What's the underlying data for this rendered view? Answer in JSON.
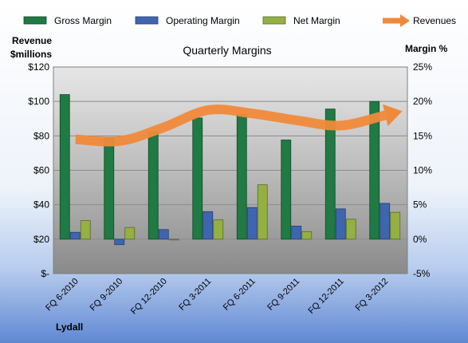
{
  "chart_data": {
    "type": "bar",
    "title": "Quarterly Margins",
    "footer": "Lydall",
    "left_axis_label": [
      "Revenue",
      "$millions"
    ],
    "right_axis_label": "Margin %",
    "categories": [
      "FQ 6-2010",
      "FQ 9-2010",
      "FQ 12-2010",
      "FQ 3-2011",
      "FQ 6-2011",
      "FQ 9-2011",
      "FQ 12-2011",
      "FQ 3-2012"
    ],
    "left_ticks": [
      "$-",
      "$20",
      "$40",
      "$60",
      "$80",
      "$100",
      "$120"
    ],
    "right_ticks": [
      "-5%",
      "0%",
      "5%",
      "10%",
      "15%",
      "20%",
      "25%"
    ],
    "left_ylim": [
      0,
      120
    ],
    "right_ylim": [
      -5,
      25
    ],
    "series": [
      {
        "name": "Gross Margin",
        "type": "bar",
        "axis": "right",
        "color": "#1f7a43",
        "values": [
          21.0,
          14.8,
          15.6,
          17.6,
          18.1,
          14.4,
          18.9,
          20.0
        ]
      },
      {
        "name": "Operating Margin",
        "type": "bar",
        "axis": "right",
        "color": "#3e66b0",
        "values": [
          1.0,
          -0.8,
          1.4,
          4.0,
          4.6,
          1.9,
          4.4,
          5.2
        ]
      },
      {
        "name": "Net Margin",
        "type": "bar",
        "axis": "right",
        "color": "#94b043",
        "values": [
          2.7,
          1.7,
          -0.1,
          2.8,
          7.9,
          1.1,
          2.9,
          3.9
        ]
      },
      {
        "name": "Revenues",
        "type": "line",
        "axis": "left",
        "color": "#f08a3a",
        "values": [
          78,
          77,
          85,
          95,
          93,
          89,
          86,
          92
        ]
      }
    ],
    "grid": true,
    "legend_position": "top"
  }
}
